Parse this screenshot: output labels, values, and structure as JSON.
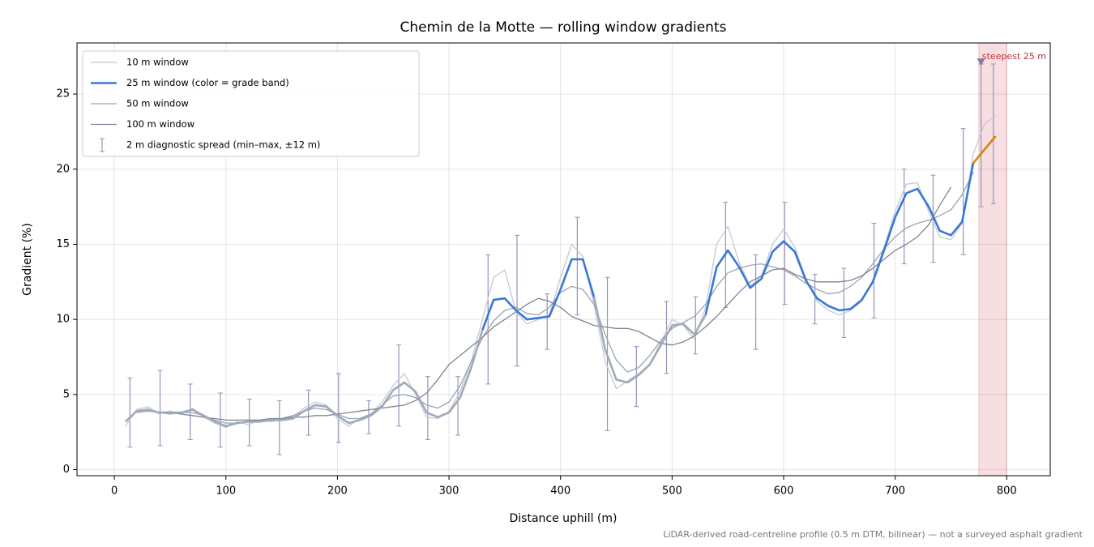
{
  "chart_data": {
    "type": "line",
    "title": "Chemin de la Motte — rolling window gradients",
    "x_label": "Distance uphill (m)",
    "y_label": "Gradient (%)",
    "footnote": "LiDAR-derived road-centreline profile (0.5 m DTM, bilinear) — not a surveyed asphalt gradient",
    "xlim": [
      -33.5,
      839
    ],
    "ylim": [
      -0.4,
      28.4
    ],
    "xticks": [
      0,
      100,
      200,
      300,
      400,
      500,
      600,
      700,
      800
    ],
    "yticks": [
      0,
      5,
      10,
      15,
      20,
      25
    ],
    "grid": true,
    "legend": "upper left",
    "x": [
      0,
      10,
      20,
      30,
      40,
      50,
      60,
      70,
      80,
      90,
      100,
      110,
      120,
      130,
      140,
      150,
      160,
      170,
      180,
      190,
      200,
      210,
      220,
      230,
      240,
      250,
      260,
      270,
      280,
      290,
      300,
      310,
      320,
      330,
      340,
      350,
      360,
      370,
      380,
      390,
      400,
      410,
      420,
      430,
      440,
      450,
      460,
      470,
      480,
      490,
      500,
      510,
      520,
      530,
      540,
      550,
      560,
      570,
      580,
      590,
      600,
      610,
      620,
      630,
      640,
      650,
      660,
      670,
      680,
      690,
      700,
      710,
      720,
      730,
      740,
      750,
      760,
      770,
      780,
      790
    ],
    "series": [
      {
        "name": "10 m window",
        "color": "#c5c8d6",
        "width": 1.3,
        "values": [
          null,
          2.9,
          4.0,
          4.2,
          3.7,
          3.9,
          3.7,
          4.1,
          3.5,
          3.1,
          2.8,
          3.2,
          3.0,
          3.3,
          3.2,
          3.3,
          3.5,
          4.1,
          4.5,
          4.3,
          3.4,
          2.9,
          3.4,
          3.7,
          4.5,
          5.6,
          6.4,
          5.0,
          3.5,
          3.4,
          3.9,
          5.2,
          7.2,
          10.0,
          12.8,
          13.3,
          10.5,
          9.7,
          10.0,
          10.3,
          12.8,
          15.0,
          14.2,
          11.0,
          7.2,
          5.4,
          5.9,
          6.4,
          7.0,
          8.5,
          10.0,
          9.6,
          8.7,
          10.8,
          15.0,
          16.2,
          13.8,
          12.2,
          12.9,
          15.0,
          16.0,
          14.8,
          12.7,
          11.2,
          10.6,
          10.3,
          10.6,
          11.2,
          12.6,
          14.8,
          17.2,
          19.0,
          19.1,
          17.2,
          15.5,
          15.3,
          16.4,
          21.0,
          23.0,
          23.6
        ]
      },
      {
        "name": "25 m window (color = grade band)",
        "color": "#3a78d4",
        "width": 2.6,
        "band_edges": [
          10,
          20
        ],
        "band_colors": [
          "#a0aab8",
          "#3a78d4",
          "#d4860b"
        ],
        "values": [
          null,
          3.2,
          3.9,
          4.0,
          3.8,
          3.8,
          3.8,
          4.0,
          3.6,
          3.2,
          2.9,
          3.1,
          3.2,
          3.2,
          3.3,
          3.3,
          3.4,
          3.9,
          4.3,
          4.2,
          3.6,
          3.1,
          3.3,
          3.6,
          4.2,
          5.3,
          5.8,
          5.2,
          3.8,
          3.5,
          3.8,
          4.8,
          6.8,
          9.3,
          11.3,
          11.4,
          10.6,
          10.0,
          10.1,
          10.2,
          12.0,
          14.0,
          14.0,
          11.5,
          8.0,
          6.0,
          5.8,
          6.3,
          7.0,
          8.3,
          9.6,
          9.7,
          9.0,
          10.3,
          13.5,
          14.6,
          13.5,
          12.1,
          12.7,
          14.5,
          15.2,
          14.5,
          12.6,
          11.4,
          10.9,
          10.6,
          10.7,
          11.3,
          12.5,
          14.6,
          16.8,
          18.4,
          18.7,
          17.5,
          15.9,
          15.6,
          16.5,
          20.4,
          21.3,
          22.2
        ]
      },
      {
        "name": "50 m window",
        "color": "#9aa3b5",
        "width": 1.3,
        "values": [
          null,
          null,
          3.8,
          3.9,
          3.8,
          3.7,
          3.8,
          3.8,
          3.6,
          3.3,
          3.1,
          3.1,
          3.2,
          3.3,
          3.3,
          3.4,
          3.6,
          3.9,
          4.1,
          4.0,
          3.7,
          3.4,
          3.4,
          3.7,
          4.3,
          4.9,
          5.0,
          4.8,
          4.3,
          4.1,
          4.5,
          5.6,
          7.2,
          8.8,
          9.9,
          10.6,
          10.8,
          10.4,
          10.3,
          10.8,
          11.8,
          12.2,
          12.0,
          11.0,
          9.0,
          7.3,
          6.5,
          6.8,
          7.6,
          8.6,
          9.4,
          9.8,
          10.2,
          11.0,
          12.2,
          13.1,
          13.4,
          13.6,
          13.7,
          13.5,
          13.3,
          12.9,
          12.4,
          12.0,
          11.7,
          11.8,
          12.2,
          12.8,
          13.7,
          14.7,
          15.5,
          16.1,
          16.4,
          16.6,
          16.9,
          17.3,
          18.3,
          19.8,
          null,
          null
        ]
      },
      {
        "name": "100 m window",
        "color": "#7f8595",
        "width": 1.3,
        "values": [
          null,
          null,
          null,
          null,
          3.8,
          3.8,
          3.7,
          3.6,
          3.5,
          3.4,
          3.3,
          3.3,
          3.3,
          3.3,
          3.4,
          3.4,
          3.5,
          3.5,
          3.6,
          3.6,
          3.7,
          3.8,
          3.9,
          4.0,
          4.1,
          4.2,
          4.3,
          4.6,
          5.1,
          6.0,
          7.0,
          7.6,
          8.2,
          8.8,
          9.5,
          10.0,
          10.5,
          11.0,
          11.4,
          11.2,
          10.8,
          10.2,
          9.9,
          9.6,
          9.5,
          9.4,
          9.4,
          9.2,
          8.8,
          8.4,
          8.3,
          8.5,
          8.9,
          9.5,
          10.2,
          11.0,
          11.8,
          12.5,
          12.9,
          13.3,
          13.4,
          13.0,
          12.7,
          12.5,
          12.5,
          12.5,
          12.6,
          12.9,
          13.4,
          14.0,
          14.6,
          15.0,
          15.5,
          16.3,
          17.6,
          18.8,
          null,
          null,
          null,
          null
        ]
      }
    ],
    "errorbars": {
      "name": "2 m diagnostic spread (min–max, ±12 m)",
      "color": "#9a90b8",
      "x": [
        14,
        41,
        68,
        95,
        121,
        148,
        174,
        201,
        228,
        255,
        281,
        308,
        335,
        361,
        388,
        415,
        442,
        468,
        495,
        521,
        548,
        575,
        601,
        628,
        654,
        681,
        708,
        734,
        761,
        777,
        788
      ],
      "low": [
        1.5,
        1.6,
        2.0,
        1.5,
        1.6,
        1.0,
        2.3,
        1.8,
        2.4,
        2.9,
        2.0,
        2.3,
        5.7,
        6.9,
        8.0,
        10.3,
        2.6,
        4.2,
        6.4,
        7.7,
        10.8,
        8.0,
        11.0,
        9.7,
        8.8,
        10.1,
        13.7,
        13.8,
        14.3,
        17.5,
        17.7
      ],
      "high": [
        6.1,
        6.6,
        5.7,
        5.1,
        4.7,
        4.6,
        5.3,
        6.4,
        4.6,
        8.3,
        6.2,
        6.2,
        14.3,
        15.6,
        11.7,
        16.8,
        12.8,
        8.2,
        11.2,
        11.5,
        17.8,
        14.3,
        17.8,
        13.0,
        13.4,
        16.4,
        20.0,
        19.6,
        22.7,
        27.0,
        27.0
      ]
    },
    "highlight": {
      "label": "steepest 25 m",
      "xrange": [
        775,
        800
      ],
      "color": "#e8a0a8",
      "label_color": "#c03040",
      "marker_x": 777,
      "marker_y": 27.1,
      "marker_color": "#8878a8"
    }
  }
}
